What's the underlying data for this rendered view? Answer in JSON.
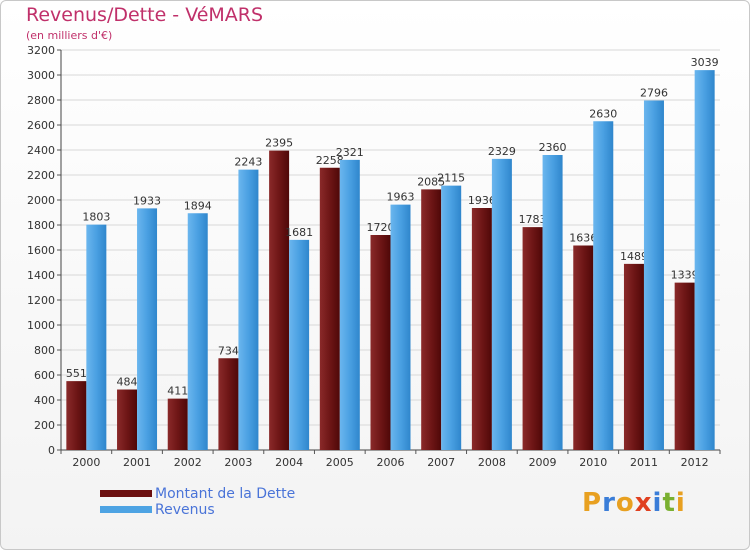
{
  "header": {
    "title": "Revenus/Dette - VéMARS",
    "subtitle": "(en milliers d'€)"
  },
  "chart_data": {
    "type": "bar",
    "categories": [
      "2000",
      "2001",
      "2002",
      "2003",
      "2004",
      "2005",
      "2006",
      "2007",
      "2008",
      "2009",
      "2010",
      "2011",
      "2012"
    ],
    "series": [
      {
        "name": "Montant de la Dette",
        "values": [
          551,
          484,
          411,
          734,
          2395,
          2258,
          1720,
          2085,
          1936,
          1783,
          1636,
          1489,
          1339
        ],
        "color": "#7a1a1a"
      },
      {
        "name": "Revenus",
        "values": [
          1803,
          1933,
          1894,
          2243,
          1681,
          2321,
          1963,
          2115,
          2329,
          2360,
          2630,
          2796,
          3039
        ],
        "color": "#4da3e3"
      }
    ],
    "yticks": [
      "0",
      "200",
      "400",
      "600",
      "800",
      "1000",
      "1200",
      "1400",
      "1600",
      "1800",
      "2000",
      "2200",
      "2400",
      "2600",
      "2800",
      "3000",
      "3200"
    ],
    "ylim": [
      0,
      3200
    ],
    "grid": true,
    "legend_position": "bottom-left"
  },
  "legend": {
    "items": [
      {
        "label": "Montant de la Dette",
        "color": "#6b0f0f"
      },
      {
        "label": "Revenus",
        "color": "#4da3e3"
      }
    ]
  },
  "logo": {
    "text": "Proxiti",
    "letter_colors": [
      "#e8a020",
      "#3a7dd8",
      "#e8a020",
      "#e04020",
      "#3a7dd8",
      "#7ab030",
      "#e8a020"
    ]
  }
}
